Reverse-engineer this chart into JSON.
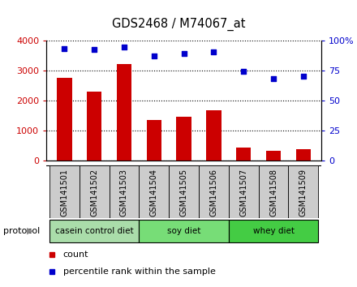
{
  "title": "GDS2468 / M74067_at",
  "samples": [
    "GSM141501",
    "GSM141502",
    "GSM141503",
    "GSM141504",
    "GSM141505",
    "GSM141506",
    "GSM141507",
    "GSM141508",
    "GSM141509"
  ],
  "counts": [
    2750,
    2300,
    3200,
    1350,
    1450,
    1680,
    450,
    320,
    370
  ],
  "percentile_ranks": [
    93,
    92,
    94,
    87,
    89,
    90,
    74,
    68,
    70
  ],
  "left_ylim": [
    0,
    4000
  ],
  "right_ylim": [
    0,
    100
  ],
  "left_yticks": [
    0,
    1000,
    2000,
    3000,
    4000
  ],
  "right_yticks": [
    0,
    25,
    50,
    75,
    100
  ],
  "right_yticklabels": [
    "0",
    "25",
    "50",
    "75",
    "100%"
  ],
  "bar_color": "#cc0000",
  "scatter_color": "#0000cc",
  "bg_color": "#ffffff",
  "xtick_bg_color": "#cccccc",
  "protocol_groups": [
    {
      "label": "casein control diet",
      "start": 0,
      "end": 3,
      "color": "#aaddaa"
    },
    {
      "label": "soy diet",
      "start": 3,
      "end": 6,
      "color": "#77dd77"
    },
    {
      "label": "whey diet",
      "start": 6,
      "end": 9,
      "color": "#44cc44"
    }
  ],
  "legend_items": [
    {
      "label": "count",
      "color": "#cc0000"
    },
    {
      "label": "percentile rank within the sample",
      "color": "#0000cc"
    }
  ],
  "protocol_label": "protocol",
  "bar_width": 0.5
}
